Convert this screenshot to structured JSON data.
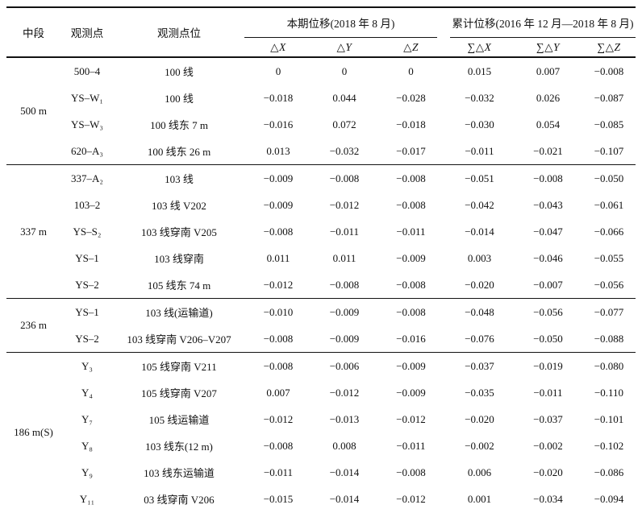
{
  "table": {
    "columns": {
      "level": "中段",
      "point": "观测点",
      "location": "观测点位",
      "current_group": "本期位移(2018 年 8 月)",
      "cumulative_group": "累计位移(2016 年 12 月—2018 年 8 月)",
      "sub": [
        "△X",
        "△Y",
        "△Z",
        "∑△X",
        "∑△Y",
        "∑△Z"
      ]
    },
    "groups": [
      {
        "level": "500 m",
        "rows": [
          {
            "point": "500–4",
            "location": "100 线",
            "values": [
              "0",
              "0",
              "0",
              "0.015",
              "0.007",
              "−0.008"
            ]
          },
          {
            "point": "YS–W₁",
            "location": "100 线",
            "values": [
              "−0.018",
              "0.044",
              "−0.028",
              "−0.032",
              "0.026",
              "−0.087"
            ]
          },
          {
            "point": "YS–W₃",
            "location": "100 线东 7 m",
            "values": [
              "−0.016",
              "0.072",
              "−0.018",
              "−0.030",
              "0.054",
              "−0.085"
            ]
          },
          {
            "point": "620–A₃",
            "location": "100 线东 26 m",
            "values": [
              "0.013",
              "−0.032",
              "−0.017",
              "−0.011",
              "−0.021",
              "−0.107"
            ]
          }
        ]
      },
      {
        "level": "337 m",
        "rows": [
          {
            "point": "337–A₂",
            "location": "103 线",
            "values": [
              "−0.009",
              "−0.008",
              "−0.008",
              "−0.051",
              "−0.008",
              "−0.050"
            ]
          },
          {
            "point": "103–2",
            "location": "103 线 V202",
            "values": [
              "−0.009",
              "−0.012",
              "−0.008",
              "−0.042",
              "−0.043",
              "−0.061"
            ]
          },
          {
            "point": "YS–S₂",
            "location": "103 线穿南 V205",
            "values": [
              "−0.008",
              "−0.011",
              "−0.011",
              "−0.014",
              "−0.047",
              "−0.066"
            ]
          },
          {
            "point": "YS–1",
            "location": "103 线穿南",
            "values": [
              "0.011",
              "0.011",
              "−0.009",
              "0.003",
              "−0.046",
              "−0.055"
            ]
          },
          {
            "point": "YS–2",
            "location": "105 线东 74 m",
            "values": [
              "−0.012",
              "−0.008",
              "−0.008",
              "−0.020",
              "−0.007",
              "−0.056"
            ]
          }
        ]
      },
      {
        "level": "236 m",
        "rows": [
          {
            "point": "YS–1",
            "location": "103 线(运输道)",
            "values": [
              "−0.010",
              "−0.009",
              "−0.008",
              "−0.048",
              "−0.056",
              "−0.077"
            ]
          },
          {
            "point": "YS–2",
            "location": "103 线穿南 V206–V207",
            "values": [
              "−0.008",
              "−0.009",
              "−0.016",
              "−0.076",
              "−0.050",
              "−0.088"
            ]
          }
        ]
      },
      {
        "level": "186 m(S)",
        "rows": [
          {
            "point": "Y₃",
            "location": "105 线穿南 V211",
            "values": [
              "−0.008",
              "−0.006",
              "−0.009",
              "−0.037",
              "−0.019",
              "−0.080"
            ]
          },
          {
            "point": "Y₄",
            "location": "105 线穿南 V207",
            "values": [
              "0.007",
              "−0.012",
              "−0.009",
              "−0.035",
              "−0.011",
              "−0.110"
            ]
          },
          {
            "point": "Y₇",
            "location": "105 线运输道",
            "values": [
              "−0.012",
              "−0.013",
              "−0.012",
              "−0.020",
              "−0.037",
              "−0.101"
            ]
          },
          {
            "point": "Y₈",
            "location": "103 线东(12 m)",
            "values": [
              "−0.008",
              "0.008",
              "−0.011",
              "−0.002",
              "−0.002",
              "−0.102"
            ]
          },
          {
            "point": "Y₉",
            "location": "103 线东运输道",
            "values": [
              "−0.011",
              "−0.014",
              "−0.008",
              "0.006",
              "−0.020",
              "−0.086"
            ]
          },
          {
            "point": "Y₁₁",
            "location": "03 线穿南 V206",
            "values": [
              "−0.015",
              "−0.014",
              "−0.012",
              "0.001",
              "−0.034",
              "−0.094"
            ]
          }
        ]
      }
    ]
  }
}
